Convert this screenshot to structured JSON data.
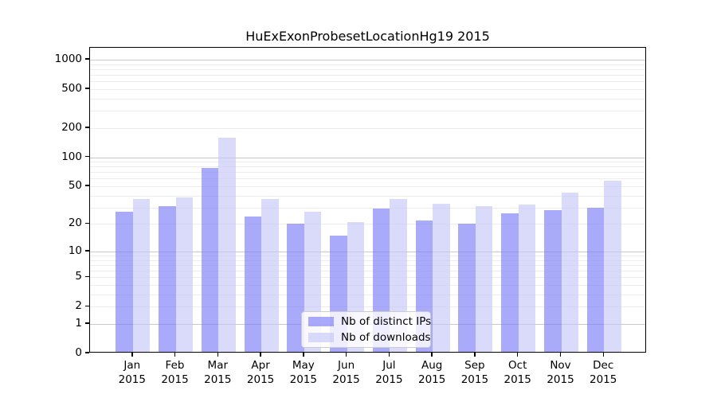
{
  "figure": {
    "title": "HuExExonProbesetLocationHg19 2015",
    "background_color": "#ffffff"
  },
  "chart_data": {
    "type": "bar",
    "title": "HuExExonProbesetLocationHg19 2015",
    "categories": [
      "Jan",
      "Feb",
      "Mar",
      "Apr",
      "May",
      "Jun",
      "Jul",
      "Aug",
      "Sep",
      "Oct",
      "Nov",
      "Dec"
    ],
    "category_year_label": "2015",
    "series": [
      {
        "name": "Nb of distinct IPs",
        "color": "#7d7df8",
        "bar_alpha": 0.65,
        "values": [
          27,
          31,
          78,
          24,
          20,
          15,
          29,
          22,
          20,
          26,
          28,
          30
        ]
      },
      {
        "name": "Nb of downloads",
        "color": "#c6c6f8",
        "bar_alpha": 0.65,
        "values": [
          37,
          38,
          159,
          37,
          27,
          21,
          37,
          33,
          31,
          32,
          43,
          57
        ]
      }
    ],
    "xlabel": "",
    "ylabel": "",
    "yscale": "log10(1+x)",
    "ylim": [
      0,
      1320
    ],
    "yticks": [
      0,
      1,
      2,
      5,
      10,
      20,
      50,
      100,
      200,
      500,
      1000
    ],
    "grid": "horizontal, minor + major decade lines",
    "legend_position": "lower center",
    "axis_color": "#000000",
    "major_grid_color": "#c9c9c9",
    "minor_grid_color": "#ededed"
  },
  "legend": {
    "items": [
      {
        "label": "Nb of distinct IPs"
      },
      {
        "label": "Nb of downloads"
      }
    ]
  }
}
